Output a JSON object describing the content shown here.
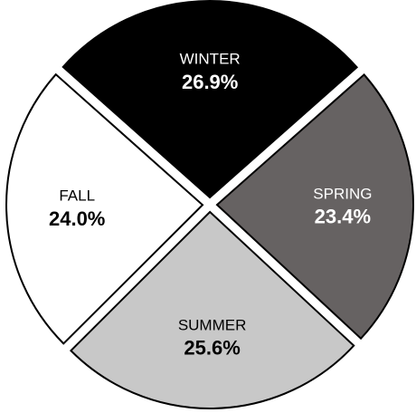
{
  "chart_data": {
    "type": "pie",
    "categories": [
      "WINTER",
      "SPRING",
      "SUMMER",
      "FALL"
    ],
    "values": [
      26.9,
      23.4,
      25.6,
      24.0
    ],
    "value_labels": [
      "26.9%",
      "23.4%",
      "25.6%",
      "24.0%"
    ],
    "colors": [
      "#000000",
      "#666262",
      "#c8c8c8",
      "#ffffff"
    ],
    "label_colors": [
      "#ffffff",
      "#ffffff",
      "#000000",
      "#000000"
    ]
  }
}
